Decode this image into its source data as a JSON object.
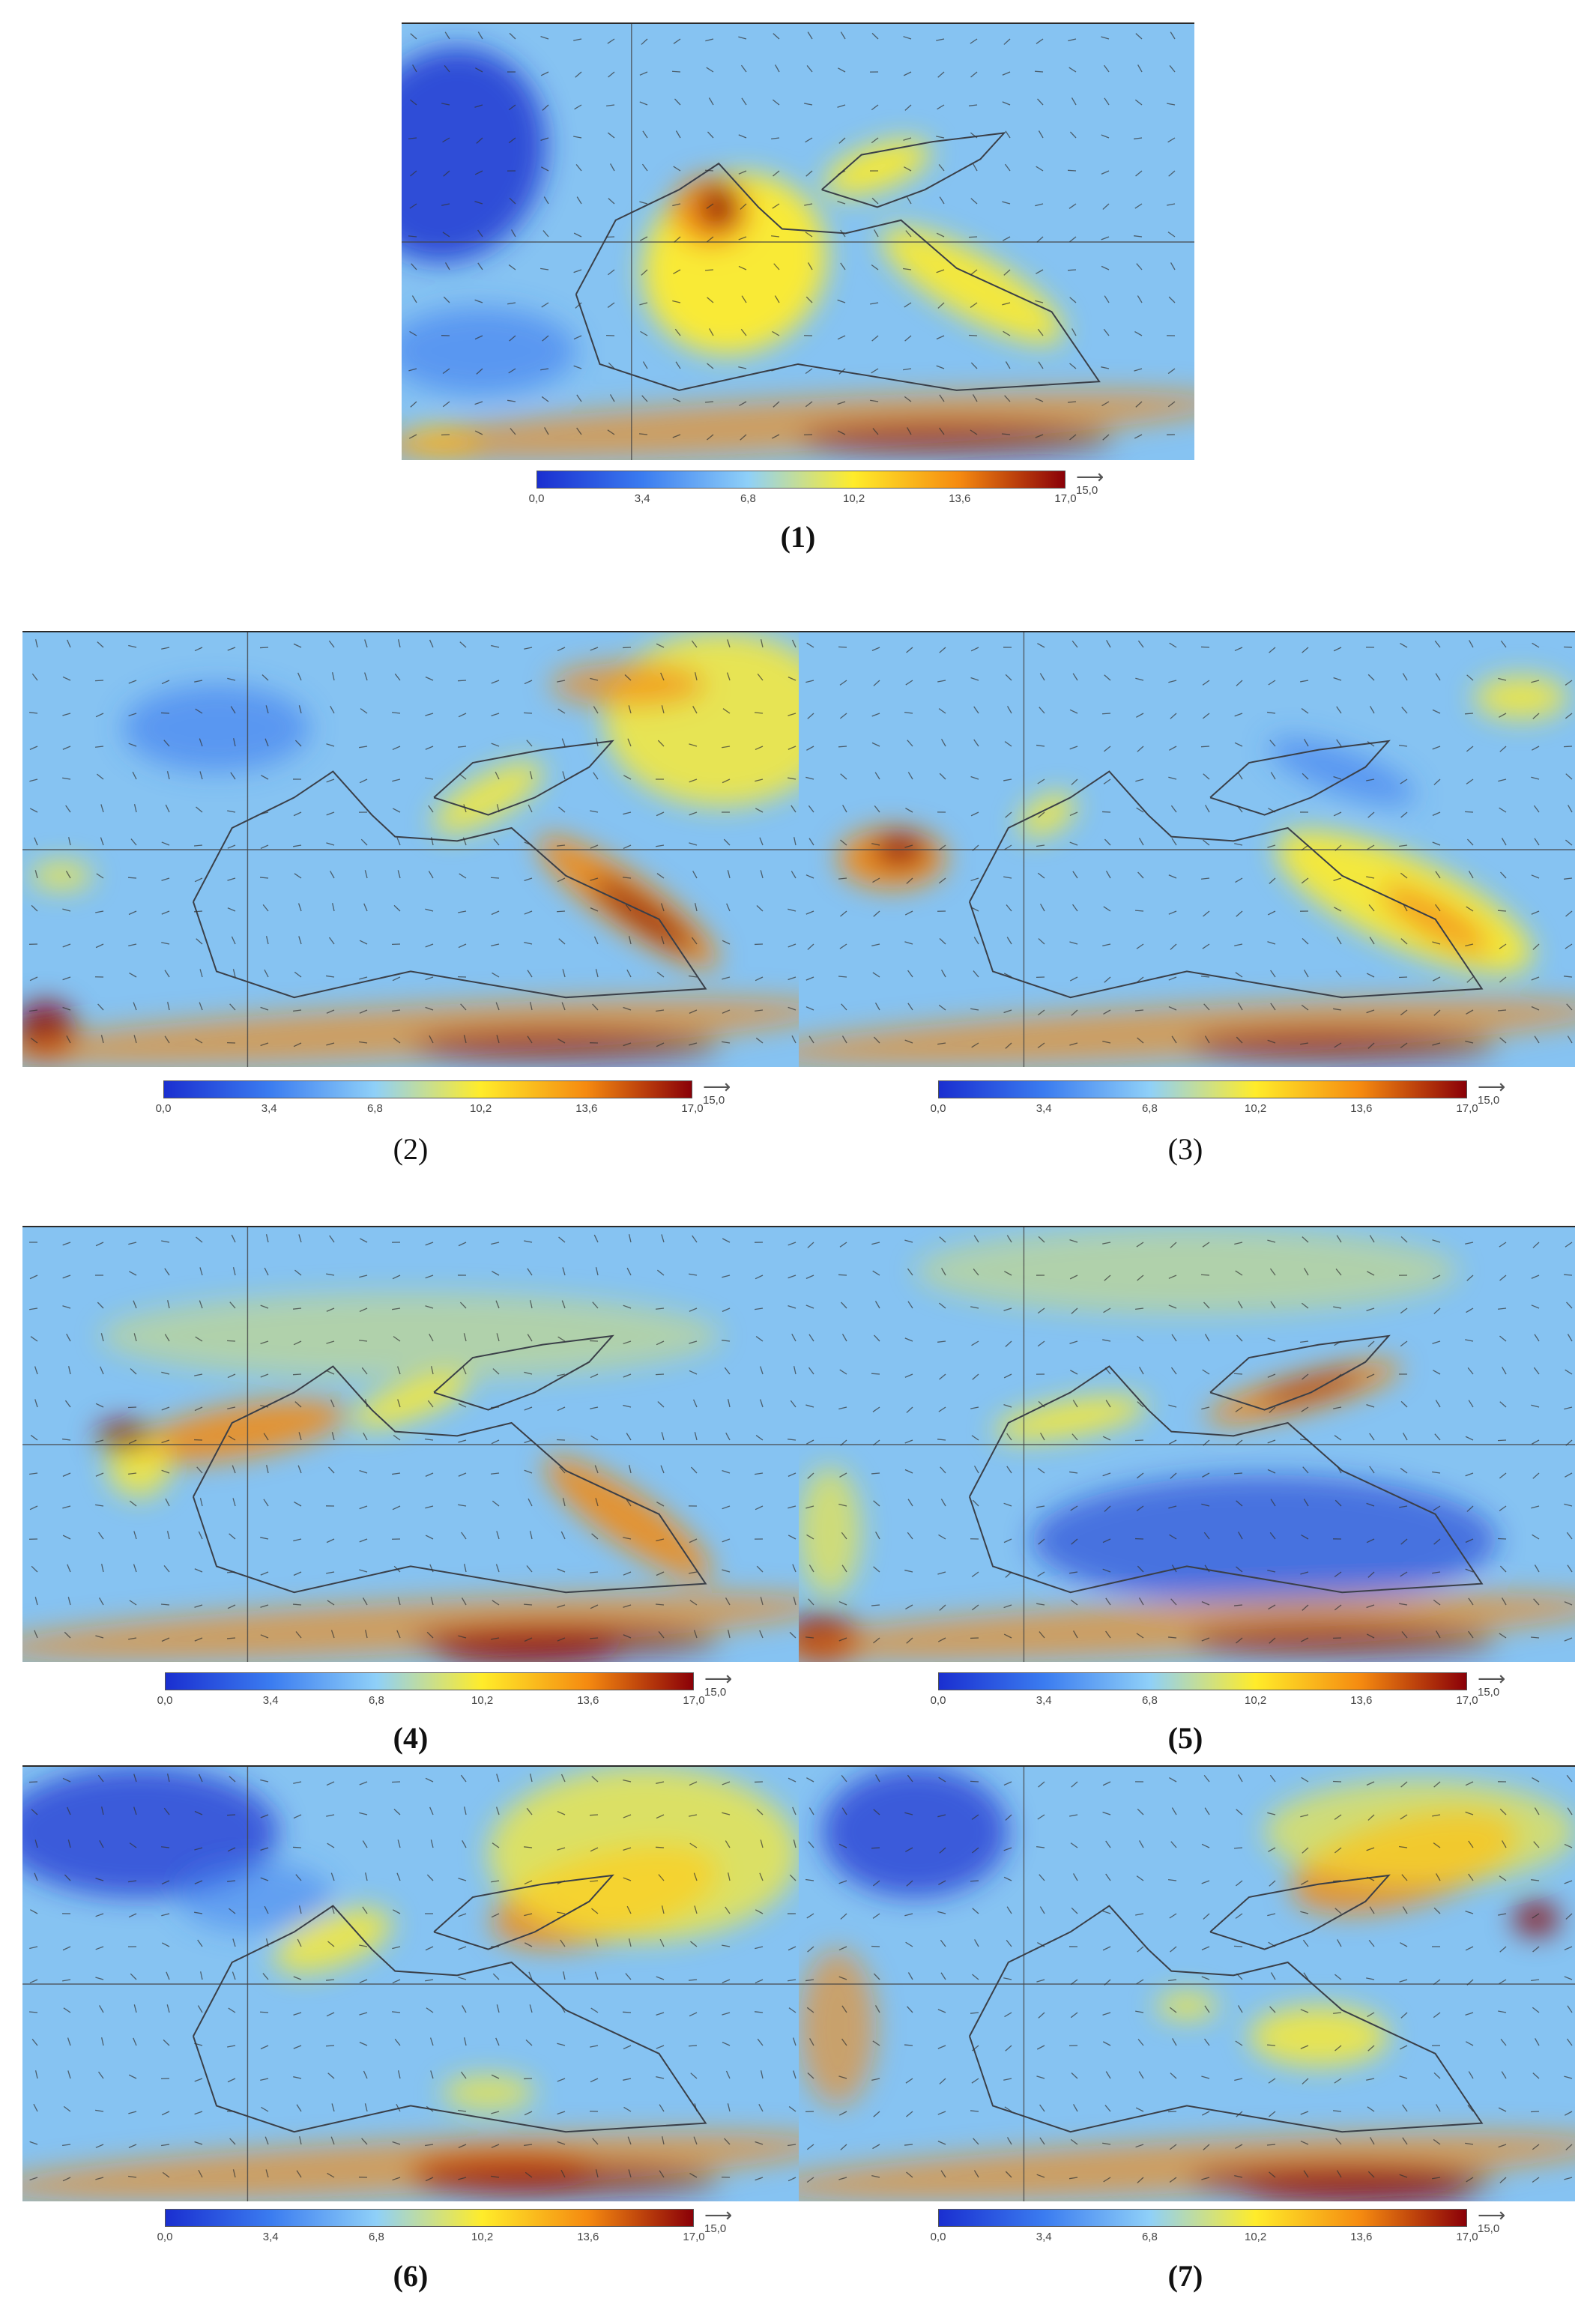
{
  "colorbar": {
    "ticks": [
      "0,0",
      "3,4",
      "6,8",
      "10,2",
      "13,6",
      "17,0"
    ],
    "arrow_label": "15,0",
    "colors": [
      "#1a2fd0",
      "#3b7cf0",
      "#8fd0f8",
      "#ffec2a",
      "#f58a10",
      "#8a0008"
    ]
  },
  "panels": [
    {
      "id": "1",
      "label": "(1)"
    },
    {
      "id": "2",
      "label": "(2)"
    },
    {
      "id": "3",
      "label": "(3)"
    },
    {
      "id": "4",
      "label": "(4)"
    },
    {
      "id": "5",
      "label": "(5)"
    },
    {
      "id": "6",
      "label": "(6)"
    },
    {
      "id": "7",
      "label": "(7)"
    }
  ]
}
